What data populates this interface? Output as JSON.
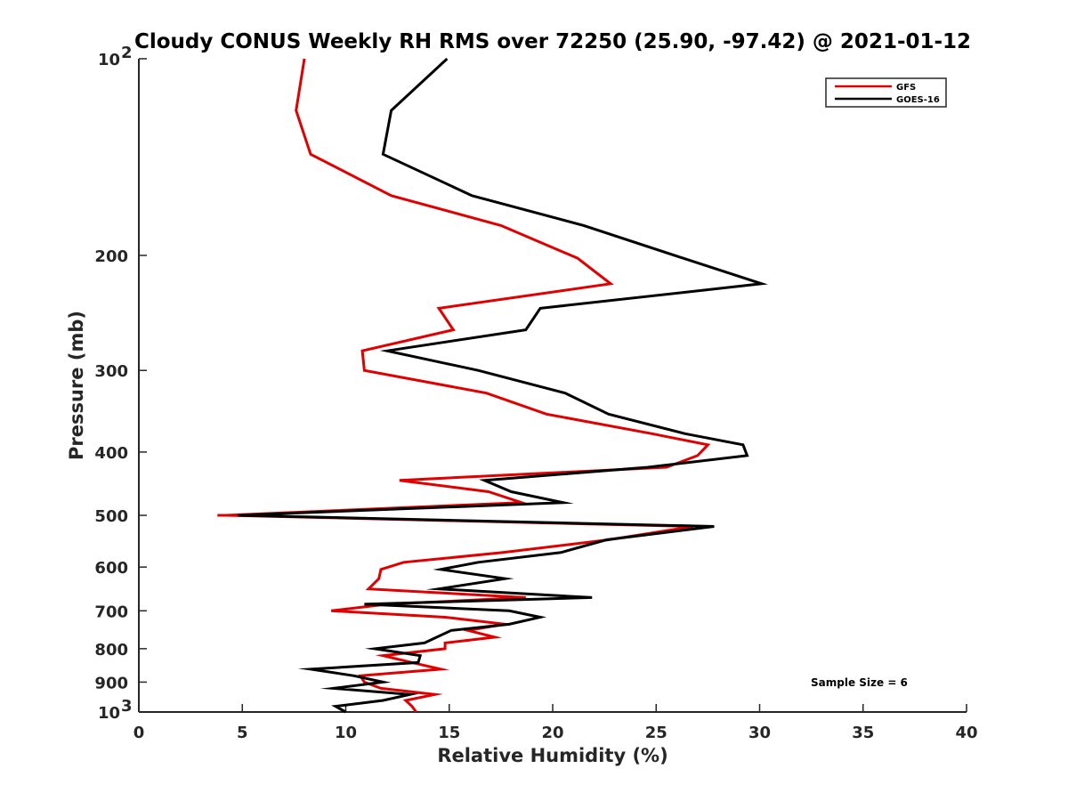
{
  "chart_data": {
    "type": "line",
    "title": "Cloudy CONUS Weekly RH RMS over 72250 (25.90, -97.42) @ 2021-01-12",
    "xlabel": "Relative Humidity (%)",
    "ylabel": "Pressure (mb)",
    "xlim": [
      0,
      40
    ],
    "ylim": [
      100,
      1000
    ],
    "y_scale": "log",
    "y_reversed": true,
    "grid": false,
    "legend_position": "top-right",
    "x_ticks": [
      "0",
      "5",
      "10",
      "15",
      "20",
      "25",
      "30",
      "35",
      "40"
    ],
    "y_ticks": [
      {
        "value": 100,
        "label": "10",
        "sup": "2"
      },
      {
        "value": 200,
        "label": "200",
        "sup": ""
      },
      {
        "value": 300,
        "label": "300",
        "sup": ""
      },
      {
        "value": 400,
        "label": "400",
        "sup": ""
      },
      {
        "value": 500,
        "label": "500",
        "sup": ""
      },
      {
        "value": 600,
        "label": "600",
        "sup": ""
      },
      {
        "value": 700,
        "label": "700",
        "sup": ""
      },
      {
        "value": 800,
        "label": "800",
        "sup": ""
      },
      {
        "value": 900,
        "label": "900",
        "sup": ""
      },
      {
        "value": 1000,
        "label": "10",
        "sup": "3"
      }
    ],
    "annotation": "Sample Size = 6",
    "series": [
      {
        "name": "GFS",
        "color": "#e00000",
        "points": [
          [
            8.0,
            100
          ],
          [
            7.6,
            120
          ],
          [
            8.3,
            140
          ],
          [
            12.2,
            162
          ],
          [
            17.5,
            180
          ],
          [
            21.2,
            202
          ],
          [
            22.8,
            221
          ],
          [
            14.5,
            241
          ],
          [
            15.2,
            260
          ],
          [
            10.8,
            280
          ],
          [
            10.9,
            300
          ],
          [
            16.8,
            325
          ],
          [
            19.7,
            350
          ],
          [
            24.8,
            375
          ],
          [
            27.5,
            390
          ],
          [
            27.0,
            405
          ],
          [
            25.5,
            422
          ],
          [
            12.6,
            442
          ],
          [
            16.9,
            460
          ],
          [
            18.5,
            478
          ],
          [
            4.2,
            500
          ],
          [
            3.8,
            500
          ],
          [
            4.2,
            500
          ],
          [
            26.8,
            520
          ],
          [
            22.7,
            545
          ],
          [
            17.6,
            570
          ],
          [
            12.8,
            590
          ],
          [
            11.7,
            605
          ],
          [
            11.6,
            625
          ],
          [
            11.1,
            648
          ],
          [
            18.7,
            668
          ],
          [
            12.0,
            684
          ],
          [
            9.3,
            700
          ],
          [
            14.8,
            716
          ],
          [
            17.7,
            734
          ],
          [
            15.9,
            750
          ],
          [
            17.2,
            768
          ],
          [
            14.8,
            784
          ],
          [
            14.8,
            800
          ],
          [
            11.8,
            820
          ],
          [
            13.2,
            840
          ],
          [
            14.6,
            860
          ],
          [
            10.7,
            880
          ],
          [
            10.9,
            900
          ],
          [
            11.7,
            920
          ],
          [
            14.3,
            940
          ],
          [
            12.9,
            960
          ],
          [
            13.2,
            980
          ],
          [
            13.4,
            1000
          ]
        ]
      },
      {
        "name": "GOES-16",
        "color": "#000000",
        "points": [
          [
            14.9,
            100
          ],
          [
            12.2,
            120
          ],
          [
            11.8,
            140
          ],
          [
            16.1,
            162
          ],
          [
            21.5,
            180
          ],
          [
            26.3,
            202
          ],
          [
            30.1,
            221
          ],
          [
            19.4,
            241
          ],
          [
            18.7,
            260
          ],
          [
            12.0,
            280
          ],
          [
            16.4,
            300
          ],
          [
            20.6,
            325
          ],
          [
            22.7,
            350
          ],
          [
            26.4,
            375
          ],
          [
            29.2,
            390
          ],
          [
            29.4,
            405
          ],
          [
            24.6,
            422
          ],
          [
            16.7,
            442
          ],
          [
            18.0,
            460
          ],
          [
            20.5,
            478
          ],
          [
            4.8,
            500
          ],
          [
            27.8,
            520
          ],
          [
            22.6,
            545
          ],
          [
            20.4,
            570
          ],
          [
            16.4,
            590
          ],
          [
            14.6,
            605
          ],
          [
            17.7,
            625
          ],
          [
            14.5,
            648
          ],
          [
            21.9,
            668
          ],
          [
            10.9,
            684
          ],
          [
            17.9,
            700
          ],
          [
            19.4,
            716
          ],
          [
            17.9,
            734
          ],
          [
            15.1,
            750
          ],
          [
            14.4,
            768
          ],
          [
            13.8,
            784
          ],
          [
            11.4,
            800
          ],
          [
            13.6,
            820
          ],
          [
            13.5,
            840
          ],
          [
            8.3,
            860
          ],
          [
            10.4,
            880
          ],
          [
            11.8,
            900
          ],
          [
            9.4,
            920
          ],
          [
            13.1,
            940
          ],
          [
            11.8,
            960
          ],
          [
            9.5,
            980
          ],
          [
            10.0,
            1000
          ]
        ]
      }
    ]
  }
}
